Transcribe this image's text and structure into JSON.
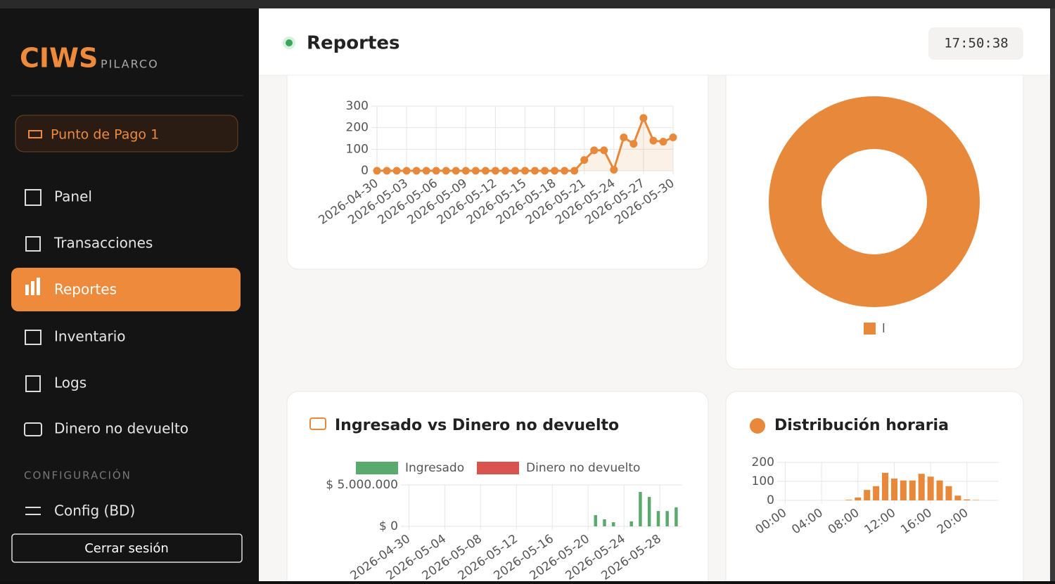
{
  "sidebar": {
    "brand": "CIWS",
    "subtitle": "PILARCO",
    "station": "Punto de Pago 1",
    "nav": [
      "Panel",
      "Transacciones",
      "Reportes",
      "Inventario",
      "Logs",
      "Dinero no devuelto"
    ],
    "section": "CONFIGURACIÓN",
    "config": "Config (BD)",
    "logout": "Cerrar sesión"
  },
  "header": {
    "title": "Reportes",
    "clock": "17:50:38"
  },
  "chart_data": [
    {
      "type": "line",
      "categories": [
        "2026-04-30",
        null,
        null,
        "2026-05-03",
        null,
        null,
        "2026-05-06",
        null,
        null,
        "2026-05-09",
        null,
        null,
        "2026-05-12",
        null,
        null,
        "2026-05-15",
        null,
        null,
        "2026-05-18",
        null,
        null,
        "2026-05-21",
        null,
        null,
        "2026-05-24",
        null,
        null,
        "2026-05-27",
        null,
        null,
        "2026-05-30"
      ],
      "series": [
        {
          "color": "#e8883a",
          "values": [
            0,
            0,
            0,
            0,
            0,
            0,
            0,
            0,
            0,
            0,
            0,
            0,
            0,
            0,
            0,
            0,
            0,
            0,
            0,
            0,
            0,
            50,
            95,
            95,
            5,
            155,
            125,
            245,
            140,
            135,
            155
          ]
        }
      ],
      "ylim": [
        0,
        300
      ],
      "yticks": [
        0,
        100,
        200,
        300
      ],
      "grid": true
    },
    {
      "type": "pie",
      "labels": [
        "l"
      ],
      "values": [
        100
      ],
      "colors": [
        "#e8883a"
      ]
    },
    {
      "type": "bar",
      "title": "Ingresado vs Dinero no devuelto",
      "categories": [
        "2026-04-30",
        null,
        null,
        null,
        "2026-05-04",
        null,
        null,
        null,
        "2026-05-08",
        null,
        null,
        null,
        "2026-05-12",
        null,
        null,
        null,
        "2026-05-16",
        null,
        null,
        null,
        "2026-05-20",
        null,
        null,
        null,
        "2026-05-24",
        null,
        null,
        null,
        "2026-05-28",
        null,
        null
      ],
      "series": [
        {
          "name": "Ingresado",
          "color": "#5aaa6e",
          "values": [
            0,
            0,
            0,
            0,
            0,
            0,
            0,
            0,
            0,
            0,
            0,
            0,
            0,
            0,
            0,
            0,
            0,
            0,
            0,
            0,
            0,
            1350000,
            850000,
            500000,
            0,
            600000,
            4150000,
            3550000,
            1850000,
            1850000,
            2300000
          ]
        },
        {
          "name": "Dinero no devuelto",
          "color": "#d9534f",
          "values": [
            0,
            0,
            0,
            0,
            0,
            0,
            0,
            0,
            0,
            0,
            0,
            0,
            0,
            0,
            0,
            0,
            0,
            0,
            0,
            0,
            0,
            0,
            0,
            0,
            0,
            0,
            0,
            0,
            0,
            0,
            0
          ]
        }
      ],
      "ylim": [
        0,
        5000000
      ],
      "yticks": [
        {
          "value": 0,
          "label": "$ 0"
        },
        {
          "value": 5000000,
          "label": "$ 5.000.000"
        }
      ],
      "grid": true
    },
    {
      "type": "bar",
      "title": "Distribución horaria",
      "categories": [
        "00:00",
        null,
        null,
        null,
        "04:00",
        null,
        null,
        null,
        "08:00",
        null,
        null,
        null,
        "12:00",
        null,
        null,
        null,
        "16:00",
        null,
        null,
        null,
        "20:00",
        null,
        null,
        null
      ],
      "series": [
        {
          "color": "#e8883a",
          "values": [
            0,
            0,
            0,
            0,
            0,
            0,
            0,
            3,
            15,
            55,
            75,
            145,
            115,
            105,
            105,
            140,
            125,
            105,
            75,
            25,
            5,
            2,
            0,
            0
          ]
        }
      ],
      "ylim": [
        0,
        200
      ],
      "yticks": [
        0,
        100,
        200
      ],
      "grid": true
    }
  ]
}
